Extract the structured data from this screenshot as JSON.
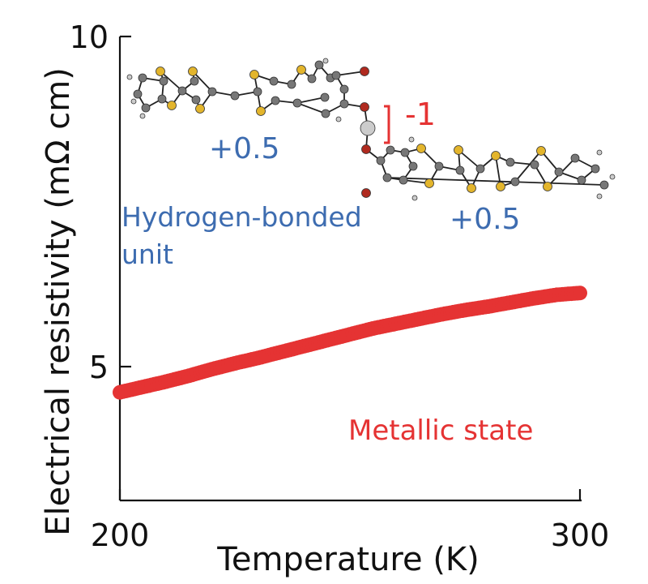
{
  "chart_data": {
    "type": "scatter",
    "xlabel": "Temperature (K)",
    "ylabel": "Electrical resistivity (mΩ cm)",
    "xlim": [
      200,
      300
    ],
    "ylim": [
      2.15,
      10
    ],
    "xticks": [
      "200",
      "300"
    ],
    "yticks": [
      "5",
      "10"
    ],
    "grid": false,
    "series": [
      {
        "color": "#e53333",
        "x": [
          200,
          205,
          210,
          215,
          220,
          225,
          230,
          235,
          240,
          245,
          250,
          255,
          260,
          265,
          270,
          275,
          280,
          285,
          290,
          295,
          300
        ],
        "y": [
          3.98,
          4.07,
          4.16,
          4.26,
          4.37,
          4.47,
          4.56,
          4.66,
          4.76,
          4.86,
          4.96,
          5.06,
          5.14,
          5.22,
          5.3,
          5.37,
          5.43,
          5.5,
          5.57,
          5.63,
          5.66
        ]
      }
    ],
    "annotations": {
      "state": "Metallic state",
      "unit_line1": "Hydrogen-bonded",
      "unit_line2": "unit",
      "charge_left": "+0.5",
      "charge_right": "+0.5",
      "charge_h": "-1"
    }
  },
  "colors": {
    "data": "#e53333",
    "annotation_blue": "#3d6cb0",
    "annotation_red": "#e53333",
    "carbon": "#777777",
    "sulfur": "#e3b52c",
    "oxygen": "#b02a1f",
    "hydrogen": "#cccccc"
  }
}
